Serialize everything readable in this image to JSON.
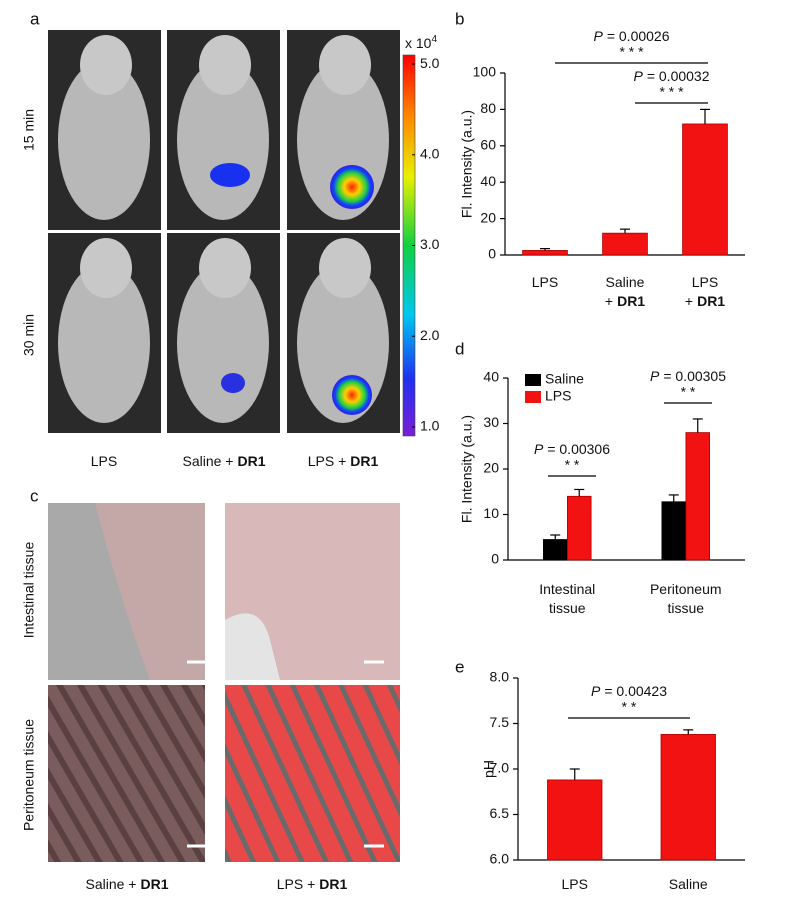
{
  "panel_a": {
    "label": "a",
    "rows": [
      "15 min",
      "30 min"
    ],
    "columns": [
      {
        "line1": "LPS"
      },
      {
        "line1": "Saline +",
        "bold": "DR1"
      },
      {
        "line1": "LPS +",
        "bold": "DR1"
      }
    ],
    "colorbar": {
      "label": "x 10",
      "exponent": "4",
      "lim": [
        0.9,
        5.1
      ],
      "ticks": [
        {
          "value": 5,
          "label": "5.0"
        },
        {
          "value": 4,
          "label": "4.0"
        },
        {
          "value": 3,
          "label": "3.0"
        },
        {
          "value": 2,
          "label": "2.0"
        },
        {
          "value": 1,
          "label": "1.0"
        }
      ]
    }
  },
  "panel_c": {
    "label": "c",
    "rows": [
      "Intestinal tissue",
      "Peritoneum tissue"
    ],
    "columns": [
      {
        "line1": "Saline +",
        "bold": "DR1"
      },
      {
        "line1": "LPS +",
        "bold": "DR1"
      }
    ]
  },
  "chart_data": [
    {
      "type": "bar",
      "panel_label": "b",
      "y_label": "Fl. Intensity (a.u.)",
      "categories": [
        {
          "line1": "LPS"
        },
        {
          "line1": "Saline",
          "line2": "+",
          "bold": "DR1"
        },
        {
          "line1": "LPS",
          "line2": "+",
          "bold": "DR1"
        }
      ],
      "values": [
        2.5,
        12,
        72
      ],
      "errors": [
        1,
        2.2,
        8
      ],
      "color": "#f21212",
      "ylim": [
        0,
        100
      ],
      "yticks": [
        0,
        20,
        40,
        60,
        80,
        100
      ],
      "annotations": [
        {
          "p": "P",
          "text": "= 0.00026",
          "stars": "* * *"
        },
        {
          "p": "P",
          "text": "= 0.00032",
          "stars": "* * *"
        }
      ]
    },
    {
      "type": "grouped_bar",
      "panel_label": "d",
      "y_label": "Fl. Intensity (a.u.)",
      "categories": [
        {
          "line1": "Intestinal",
          "line2": "tissue"
        },
        {
          "line1": "Peritoneum",
          "line2": "tissue"
        }
      ],
      "series": [
        {
          "name": "Saline",
          "color": "#000000",
          "values": [
            4.5,
            12.8
          ],
          "errors": [
            1,
            1.5
          ]
        },
        {
          "name": "LPS",
          "color": "#f21212",
          "values": [
            14,
            28
          ],
          "errors": [
            1.5,
            3
          ]
        }
      ],
      "ylim": [
        0,
        40
      ],
      "yticks": [
        0,
        10,
        20,
        30,
        40
      ],
      "legend": "top-left",
      "annotations": [
        {
          "p": "P",
          "text": "= 0.00306",
          "stars": "* *"
        },
        {
          "p": "P",
          "text": "= 0.00305",
          "stars": "* *"
        }
      ]
    },
    {
      "type": "bar",
      "panel_label": "e",
      "y_label": "pH",
      "categories": [
        {
          "line1": "LPS"
        },
        {
          "line1": "Saline"
        }
      ],
      "values": [
        6.88,
        7.38
      ],
      "errors": [
        0.12,
        0.05
      ],
      "color": "#f21212",
      "ylim": [
        6.0,
        8.0
      ],
      "yticks": [
        {
          "value": 6,
          "label": "6.0"
        },
        {
          "value": 6.5,
          "label": "6.5"
        },
        {
          "value": 7,
          "label": "7.0"
        },
        {
          "value": 7.5,
          "label": "7.5"
        },
        {
          "value": 8,
          "label": "8.0"
        }
      ],
      "annotations": [
        {
          "p": "P",
          "text": "= 0.00423",
          "stars": "* *"
        }
      ]
    }
  ]
}
